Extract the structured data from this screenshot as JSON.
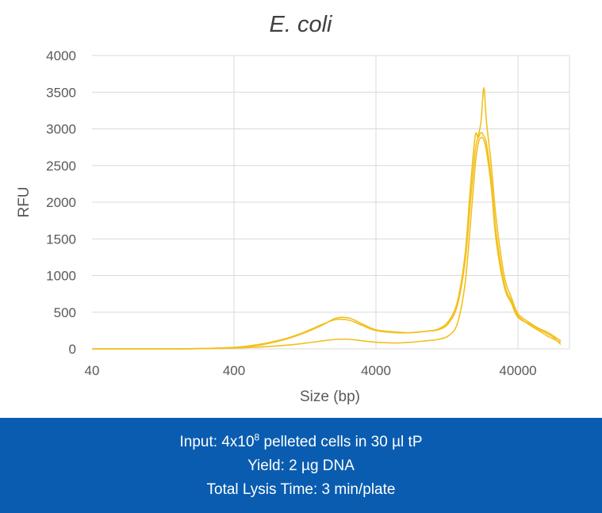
{
  "chart_data": {
    "type": "line",
    "title": "E. coli",
    "xlabel": "Size (bp)",
    "ylabel": "RFU",
    "x_scale": "log",
    "xlim": [
      40,
      80000
    ],
    "ylim": [
      0,
      4000
    ],
    "x_ticks": [
      "40",
      "400",
      "4000",
      "40000"
    ],
    "y_ticks": [
      "0",
      "500",
      "1000",
      "1500",
      "2000",
      "2500",
      "3000",
      "3500",
      "4000"
    ],
    "grid": true,
    "legend": "none",
    "color": "#f2c01e",
    "series": [
      {
        "x": [
          40,
          150,
          250,
          400,
          600,
          800,
          1000,
          1300,
          1700,
          2100,
          2600,
          3200,
          4000,
          5500,
          7000,
          9000,
          11000,
          13000,
          15000,
          17000,
          18500,
          20000,
          21000,
          22000,
          23000,
          24000,
          26000,
          28000,
          32000,
          36000,
          40000,
          48000,
          56000,
          64000,
          72000,
          80000
        ],
        "y": [
          0,
          0,
          5,
          20,
          60,
          110,
          160,
          240,
          340,
          400,
          390,
          320,
          250,
          220,
          220,
          240,
          270,
          380,
          650,
          1300,
          2200,
          2900,
          2880,
          2950,
          2900,
          2800,
          2300,
          1600,
          900,
          650,
          450,
          330,
          250,
          180,
          130,
          90
        ]
      },
      {
        "x": [
          40,
          150,
          250,
          400,
          600,
          800,
          1000,
          1300,
          1700,
          2100,
          2600,
          3200,
          4000,
          5500,
          7000,
          9000,
          11000,
          13000,
          15000,
          17000,
          18500,
          20000,
          21000,
          22000,
          23000,
          24000,
          26000,
          28000,
          32000,
          36000,
          40000,
          48000,
          56000,
          64000,
          72000,
          80000
        ],
        "y": [
          0,
          0,
          5,
          18,
          50,
          100,
          150,
          230,
          330,
          420,
          420,
          340,
          260,
          230,
          220,
          240,
          260,
          350,
          600,
          1200,
          2000,
          2700,
          2900,
          3100,
          3560,
          3100,
          2500,
          1800,
          1000,
          700,
          480,
          360,
          280,
          230,
          170,
          110
        ]
      },
      {
        "x": [
          40,
          150,
          250,
          400,
          600,
          800,
          1000,
          1300,
          1700,
          2100,
          2600,
          3200,
          4000,
          5500,
          7000,
          9000,
          11000,
          13000,
          15000,
          17000,
          18500,
          20000,
          21000,
          22000,
          23000,
          24000,
          26000,
          28000,
          32000,
          36000,
          40000,
          48000,
          56000,
          64000,
          72000,
          80000
        ],
        "y": [
          0,
          0,
          3,
          10,
          25,
          40,
          55,
          80,
          110,
          130,
          130,
          110,
          90,
          80,
          90,
          110,
          130,
          180,
          350,
          900,
          1700,
          2500,
          2800,
          2880,
          2850,
          2700,
          2200,
          1500,
          850,
          620,
          430,
          340,
          270,
          210,
          150,
          60
        ]
      }
    ]
  },
  "footer": {
    "line1_prefix": "Input: 4x10",
    "line1_sup": "8",
    "line1_suffix": " pelleted cells in 30 µl tP",
    "line2": "Yield:  2 µg DNA",
    "line3": "Total  Lysis Time: 3 min/plate"
  },
  "colors": {
    "footer_bg": "#0a5cb0",
    "series": "#f2c01e",
    "grid": "#d9d9d9"
  }
}
